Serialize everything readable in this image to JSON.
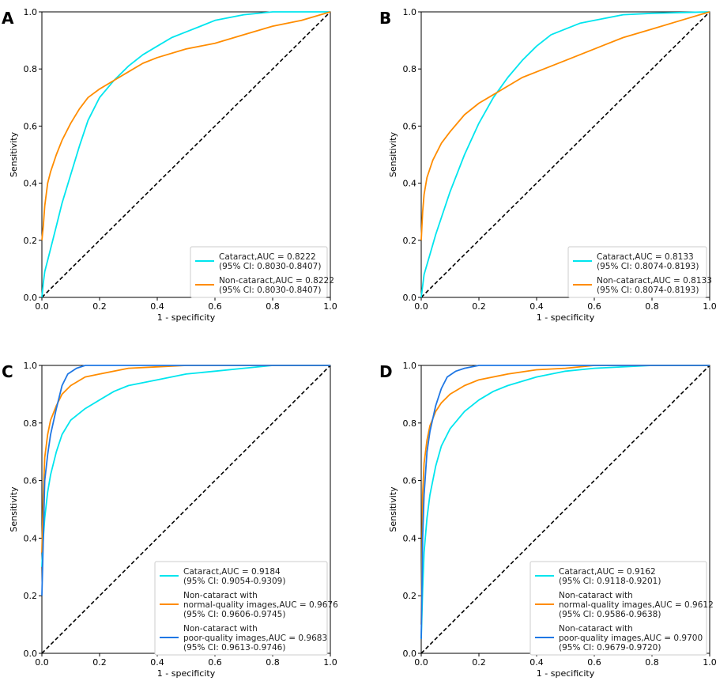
{
  "chart_data": [
    {
      "panel": "A",
      "type": "line",
      "xlabel": "1 - specificity",
      "ylabel": "Sensitivity",
      "xlim": [
        0,
        1
      ],
      "ylim": [
        0,
        1
      ],
      "xticks": [
        "0.0",
        "0.2",
        "0.4",
        "0.6",
        "0.8",
        "1.0"
      ],
      "yticks": [
        "0.0",
        "0.2",
        "0.4",
        "0.6",
        "0.8",
        "1.0"
      ],
      "legend_position": "bottom-right",
      "series": [
        {
          "name": "Cataract,AUC = 0.8222",
          "ci": "(95% CI: 0.8030-0.8407)",
          "color": "#00e5ee",
          "points": [
            [
              0,
              0
            ],
            [
              0.005,
              0.05
            ],
            [
              0.01,
              0.09
            ],
            [
              0.02,
              0.13
            ],
            [
              0.03,
              0.17
            ],
            [
              0.05,
              0.25
            ],
            [
              0.07,
              0.33
            ],
            [
              0.1,
              0.43
            ],
            [
              0.13,
              0.53
            ],
            [
              0.16,
              0.62
            ],
            [
              0.2,
              0.7
            ],
            [
              0.25,
              0.76
            ],
            [
              0.3,
              0.81
            ],
            [
              0.35,
              0.85
            ],
            [
              0.4,
              0.88
            ],
            [
              0.45,
              0.91
            ],
            [
              0.5,
              0.93
            ],
            [
              0.55,
              0.95
            ],
            [
              0.6,
              0.97
            ],
            [
              0.7,
              0.99
            ],
            [
              0.8,
              1.0
            ],
            [
              1.0,
              1.0
            ]
          ]
        },
        {
          "name": "Non-cataract,AUC = 0.8222",
          "ci": "(95% CI: 0.8030-0.8407)",
          "color": "#ff8c00",
          "points": [
            [
              0,
              0.2
            ],
            [
              0.005,
              0.25
            ],
            [
              0.01,
              0.32
            ],
            [
              0.02,
              0.4
            ],
            [
              0.03,
              0.44
            ],
            [
              0.05,
              0.5
            ],
            [
              0.07,
              0.55
            ],
            [
              0.1,
              0.61
            ],
            [
              0.13,
              0.66
            ],
            [
              0.16,
              0.7
            ],
            [
              0.2,
              0.73
            ],
            [
              0.25,
              0.76
            ],
            [
              0.3,
              0.79
            ],
            [
              0.35,
              0.82
            ],
            [
              0.4,
              0.84
            ],
            [
              0.5,
              0.87
            ],
            [
              0.6,
              0.89
            ],
            [
              0.7,
              0.92
            ],
            [
              0.8,
              0.95
            ],
            [
              0.9,
              0.97
            ],
            [
              1.0,
              1.0
            ]
          ]
        }
      ]
    },
    {
      "panel": "B",
      "type": "line",
      "xlabel": "1 - specificity",
      "ylabel": "Sensitivity",
      "xlim": [
        0,
        1
      ],
      "ylim": [
        0,
        1
      ],
      "xticks": [
        "0.0",
        "0.2",
        "0.4",
        "0.6",
        "0.8",
        "1.0"
      ],
      "yticks": [
        "0.0",
        "0.2",
        "0.4",
        "0.6",
        "0.8",
        "1.0"
      ],
      "legend_position": "bottom-right",
      "series": [
        {
          "name": "Cataract,AUC = 0.8133",
          "ci": "(95% CI: 0.8074-0.8193)",
          "color": "#00e5ee",
          "points": [
            [
              0,
              0
            ],
            [
              0.01,
              0.08
            ],
            [
              0.03,
              0.15
            ],
            [
              0.05,
              0.22
            ],
            [
              0.08,
              0.31
            ],
            [
              0.1,
              0.37
            ],
            [
              0.15,
              0.5
            ],
            [
              0.2,
              0.61
            ],
            [
              0.25,
              0.7
            ],
            [
              0.3,
              0.77
            ],
            [
              0.35,
              0.83
            ],
            [
              0.4,
              0.88
            ],
            [
              0.45,
              0.92
            ],
            [
              0.5,
              0.94
            ],
            [
              0.55,
              0.96
            ],
            [
              0.6,
              0.97
            ],
            [
              0.7,
              0.99
            ],
            [
              0.8,
              0.995
            ],
            [
              1.0,
              1.0
            ]
          ]
        },
        {
          "name": "Non-cataract,AUC = 0.8133",
          "ci": "(95% CI: 0.8074-0.8193)",
          "color": "#ff8c00",
          "points": [
            [
              0,
              0.2
            ],
            [
              0.005,
              0.3
            ],
            [
              0.01,
              0.36
            ],
            [
              0.02,
              0.42
            ],
            [
              0.04,
              0.48
            ],
            [
              0.07,
              0.54
            ],
            [
              0.1,
              0.58
            ],
            [
              0.15,
              0.64
            ],
            [
              0.2,
              0.68
            ],
            [
              0.25,
              0.71
            ],
            [
              0.3,
              0.74
            ],
            [
              0.35,
              0.77
            ],
            [
              0.4,
              0.79
            ],
            [
              0.5,
              0.83
            ],
            [
              0.6,
              0.87
            ],
            [
              0.7,
              0.91
            ],
            [
              0.8,
              0.94
            ],
            [
              0.9,
              0.97
            ],
            [
              1.0,
              1.0
            ]
          ]
        }
      ]
    },
    {
      "panel": "C",
      "type": "line",
      "xlabel": "1 - specificity",
      "ylabel": "Sensitivity",
      "xlim": [
        0,
        1
      ],
      "ylim": [
        0,
        1
      ],
      "xticks": [
        "0.0",
        "0.2",
        "0.4",
        "0.6",
        "0.8",
        "1.0"
      ],
      "yticks": [
        "0.0",
        "0.2",
        "0.4",
        "0.6",
        "0.8",
        "1.0"
      ],
      "legend_position": "bottom-right",
      "series": [
        {
          "name": "Cataract,AUC = 0.9184",
          "ci": "(95% CI: 0.9054-0.9309)",
          "color": "#00e5ee",
          "points": [
            [
              0,
              0.3
            ],
            [
              0.005,
              0.4
            ],
            [
              0.01,
              0.47
            ],
            [
              0.02,
              0.56
            ],
            [
              0.03,
              0.62
            ],
            [
              0.05,
              0.7
            ],
            [
              0.07,
              0.76
            ],
            [
              0.1,
              0.81
            ],
            [
              0.15,
              0.85
            ],
            [
              0.2,
              0.88
            ],
            [
              0.25,
              0.91
            ],
            [
              0.3,
              0.93
            ],
            [
              0.4,
              0.95
            ],
            [
              0.5,
              0.97
            ],
            [
              0.6,
              0.98
            ],
            [
              0.7,
              0.99
            ],
            [
              0.8,
              1.0
            ],
            [
              1.0,
              1.0
            ]
          ]
        },
        {
          "name": "Non-cataract with normal-quality images,AUC = 0.9676",
          "ci": "(95% CI: 0.9606-0.9745)",
          "color": "#ff8c00",
          "points": [
            [
              0,
              0.35
            ],
            [
              0.005,
              0.55
            ],
            [
              0.01,
              0.68
            ],
            [
              0.02,
              0.76
            ],
            [
              0.03,
              0.81
            ],
            [
              0.05,
              0.86
            ],
            [
              0.07,
              0.9
            ],
            [
              0.1,
              0.93
            ],
            [
              0.15,
              0.96
            ],
            [
              0.2,
              0.97
            ],
            [
              0.3,
              0.99
            ],
            [
              0.4,
              0.995
            ],
            [
              0.5,
              1.0
            ],
            [
              1.0,
              1.0
            ]
          ]
        },
        {
          "name": "Non-cataract with poor-quality images,AUC = 0.9683",
          "ci": "(95% CI: 0.9613-0.9746)",
          "color": "#1f77e4",
          "points": [
            [
              0,
              0.2
            ],
            [
              0.005,
              0.4
            ],
            [
              0.01,
              0.6
            ],
            [
              0.02,
              0.69
            ],
            [
              0.03,
              0.76
            ],
            [
              0.05,
              0.85
            ],
            [
              0.07,
              0.93
            ],
            [
              0.09,
              0.97
            ],
            [
              0.12,
              0.99
            ],
            [
              0.15,
              1.0
            ],
            [
              1.0,
              1.0
            ]
          ]
        }
      ]
    },
    {
      "panel": "D",
      "type": "line",
      "xlabel": "1 - specificity",
      "ylabel": "Sensitivity",
      "xlim": [
        0,
        1
      ],
      "ylim": [
        0,
        1
      ],
      "xticks": [
        "0.0",
        "0.2",
        "0.4",
        "0.6",
        "0.8",
        "1.0"
      ],
      "yticks": [
        "0.0",
        "0.2",
        "0.4",
        "0.6",
        "0.8",
        "1.0"
      ],
      "legend_position": "bottom-right",
      "series": [
        {
          "name": "Cataract,AUC = 0.9162",
          "ci": "(95% CI: 0.9118-0.9201)",
          "color": "#00e5ee",
          "points": [
            [
              0,
              0.05
            ],
            [
              0.005,
              0.22
            ],
            [
              0.01,
              0.35
            ],
            [
              0.02,
              0.47
            ],
            [
              0.03,
              0.55
            ],
            [
              0.05,
              0.65
            ],
            [
              0.07,
              0.72
            ],
            [
              0.1,
              0.78
            ],
            [
              0.15,
              0.84
            ],
            [
              0.2,
              0.88
            ],
            [
              0.25,
              0.91
            ],
            [
              0.3,
              0.93
            ],
            [
              0.4,
              0.96
            ],
            [
              0.5,
              0.98
            ],
            [
              0.6,
              0.99
            ],
            [
              0.8,
              1.0
            ],
            [
              1.0,
              1.0
            ]
          ]
        },
        {
          "name": "Non-cataract with normal-quality images,AUC = 0.9612",
          "ci": "(95% CI: 0.9586-0.9638)",
          "color": "#ff8c00",
          "points": [
            [
              0,
              0.1
            ],
            [
              0.005,
              0.55
            ],
            [
              0.01,
              0.66
            ],
            [
              0.02,
              0.74
            ],
            [
              0.03,
              0.79
            ],
            [
              0.05,
              0.84
            ],
            [
              0.07,
              0.87
            ],
            [
              0.1,
              0.9
            ],
            [
              0.15,
              0.93
            ],
            [
              0.2,
              0.95
            ],
            [
              0.3,
              0.97
            ],
            [
              0.4,
              0.985
            ],
            [
              0.5,
              0.99
            ],
            [
              0.6,
              1.0
            ],
            [
              1.0,
              1.0
            ]
          ]
        },
        {
          "name": "Non-cataract with poor-quality images,AUC = 0.9700",
          "ci": "(95% CI: 0.9679-0.9720)",
          "color": "#1f77e4",
          "points": [
            [
              0,
              0.05
            ],
            [
              0.005,
              0.4
            ],
            [
              0.01,
              0.55
            ],
            [
              0.02,
              0.7
            ],
            [
              0.03,
              0.77
            ],
            [
              0.05,
              0.86
            ],
            [
              0.07,
              0.92
            ],
            [
              0.09,
              0.96
            ],
            [
              0.12,
              0.98
            ],
            [
              0.15,
              0.99
            ],
            [
              0.2,
              1.0
            ],
            [
              1.0,
              1.0
            ]
          ]
        }
      ]
    }
  ]
}
